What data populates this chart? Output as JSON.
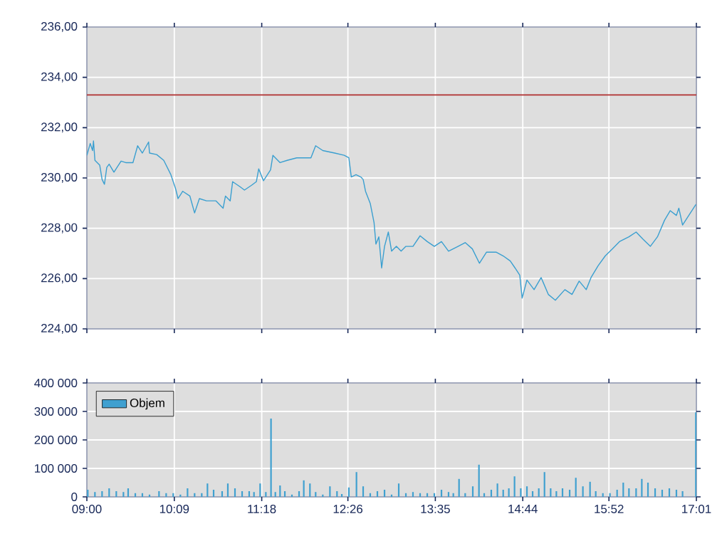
{
  "chart_data": [
    {
      "type": "line",
      "color": "#3a9fd0",
      "x": [
        9.0,
        9.044,
        9.075,
        9.087,
        9.106,
        9.169,
        9.2,
        9.231,
        9.262,
        9.293,
        9.356,
        9.45,
        9.512,
        9.606,
        9.668,
        9.73,
        9.812,
        9.824,
        9.918,
        10.011,
        10.105,
        10.168,
        10.199,
        10.261,
        10.355,
        10.417,
        10.48,
        10.573,
        10.698,
        10.792,
        10.823,
        10.885,
        10.917,
        11.01,
        11.073,
        11.166,
        11.229,
        11.26,
        11.323,
        11.416,
        11.447,
        11.541,
        11.635,
        11.76,
        11.947,
        12.009,
        12.103,
        12.259,
        12.384,
        12.446,
        12.478,
        12.54,
        12.602,
        12.634,
        12.665,
        12.727,
        12.777,
        12.802,
        12.84,
        12.877,
        12.915,
        12.965,
        13.008,
        13.071,
        13.133,
        13.196,
        13.289,
        13.383,
        13.477,
        13.57,
        13.664,
        13.757,
        13.882,
        13.976,
        14.07,
        14.163,
        14.257,
        14.382,
        14.476,
        14.569,
        14.632,
        14.694,
        14.725,
        14.788,
        14.882,
        14.975,
        15.069,
        15.162,
        15.287,
        15.381,
        15.475,
        15.568,
        15.631,
        15.724,
        15.818,
        15.911,
        16.005,
        16.13,
        16.224,
        16.317,
        16.411,
        16.505,
        16.598,
        16.673,
        16.754,
        16.786,
        16.835,
        17.011
      ],
      "values": [
        230.9,
        231.37,
        231.09,
        231.47,
        230.7,
        230.51,
        229.94,
        229.75,
        230.42,
        230.55,
        230.23,
        230.67,
        230.61,
        230.61,
        231.28,
        230.99,
        231.43,
        230.99,
        230.93,
        230.7,
        230.13,
        229.56,
        229.18,
        229.47,
        229.28,
        228.61,
        229.18,
        229.09,
        229.09,
        228.8,
        229.28,
        229.09,
        229.85,
        229.66,
        229.52,
        229.71,
        229.85,
        230.36,
        229.89,
        230.32,
        230.9,
        230.61,
        230.7,
        230.8,
        230.8,
        231.28,
        231.09,
        230.99,
        230.9,
        230.8,
        230.04,
        230.13,
        230.04,
        229.94,
        229.47,
        228.99,
        228.23,
        227.37,
        227.66,
        226.42,
        227.28,
        227.85,
        227.09,
        227.28,
        227.09,
        227.28,
        227.28,
        227.7,
        227.47,
        227.28,
        227.47,
        227.09,
        227.28,
        227.43,
        227.18,
        226.61,
        227.05,
        227.05,
        226.9,
        226.7,
        226.42,
        226.13,
        225.22,
        225.94,
        225.56,
        226.04,
        225.37,
        225.14,
        225.56,
        225.37,
        225.9,
        225.56,
        226.04,
        226.51,
        226.9,
        227.18,
        227.47,
        227.66,
        227.85,
        227.56,
        227.28,
        227.66,
        228.32,
        228.7,
        228.51,
        228.8,
        228.13,
        228.95
      ],
      "xlim": [
        9,
        17.0167
      ],
      "xticks": [
        {
          "value": 9,
          "label": null
        },
        {
          "value": 10.15,
          "label": null
        },
        {
          "value": 11.3,
          "label": null
        },
        {
          "value": 12.4333,
          "label": null
        },
        {
          "value": 13.5833,
          "label": null
        },
        {
          "value": 14.7333,
          "label": null
        },
        {
          "value": 15.8667,
          "label": null
        },
        {
          "value": 17.0167,
          "label": null
        }
      ],
      "ylim": [
        224,
        236
      ],
      "yticks": [
        {
          "value": 224,
          "label": "224,00"
        },
        {
          "value": 226,
          "label": "226,00"
        },
        {
          "value": 228,
          "label": "228,00"
        },
        {
          "value": 230,
          "label": "230,00"
        },
        {
          "value": 232,
          "label": "232,00"
        },
        {
          "value": 234,
          "label": "234,00"
        },
        {
          "value": 236,
          "label": "236,00"
        }
      ],
      "ref_lines": [
        {
          "axis": "y",
          "value": 233.3,
          "color": "#b03030"
        }
      ],
      "grid": true,
      "tick_labels": "y"
    },
    {
      "type": "bar",
      "legend": "top left",
      "grid": true,
      "series": [
        {
          "name": "Objem",
          "color": "#3fa0d0",
          "x": [
            9.012,
            9.106,
            9.2,
            9.293,
            9.387,
            9.481,
            9.543,
            9.637,
            9.73,
            9.824,
            9.949,
            10.043,
            10.136,
            10.23,
            10.324,
            10.417,
            10.511,
            10.586,
            10.667,
            10.779,
            10.854,
            10.948,
            11.042,
            11.135,
            11.198,
            11.279,
            11.354,
            11.422,
            11.479,
            11.541,
            11.604,
            11.697,
            11.791,
            11.853,
            11.934,
            12.009,
            12.103,
            12.197,
            12.29,
            12.353,
            12.446,
            12.546,
            12.634,
            12.727,
            12.821,
            12.915,
            13.008,
            13.102,
            13.196,
            13.289,
            13.383,
            13.477,
            13.57,
            13.664,
            13.757,
            13.82,
            13.895,
            13.976,
            14.076,
            14.157,
            14.226,
            14.319,
            14.4,
            14.476,
            14.55,
            14.625,
            14.707,
            14.788,
            14.863,
            14.944,
            15.019,
            15.1,
            15.175,
            15.256,
            15.35,
            15.431,
            15.524,
            15.618,
            15.693,
            15.787,
            15.88,
            15.974,
            16.055,
            16.13,
            16.224,
            16.299,
            16.38,
            16.474,
            16.567,
            16.661,
            16.754,
            16.835,
            17.01
          ],
          "values": [
            25000,
            17000,
            20000,
            30000,
            20000,
            17000,
            30000,
            13000,
            13000,
            8000,
            20000,
            13000,
            13000,
            8000,
            30000,
            13000,
            13000,
            47000,
            25000,
            20000,
            47000,
            30000,
            20000,
            20000,
            17000,
            47000,
            17000,
            275000,
            17000,
            40000,
            20000,
            8000,
            20000,
            58000,
            47000,
            17000,
            8000,
            37000,
            20000,
            10000,
            33000,
            87000,
            37000,
            13000,
            20000,
            25000,
            8000,
            47000,
            13000,
            17000,
            13000,
            13000,
            13000,
            25000,
            17000,
            13000,
            63000,
            13000,
            37000,
            113000,
            13000,
            25000,
            47000,
            25000,
            30000,
            72000,
            30000,
            37000,
            20000,
            30000,
            87000,
            30000,
            20000,
            30000,
            25000,
            67000,
            37000,
            53000,
            20000,
            13000,
            13000,
            25000,
            50000,
            30000,
            30000,
            63000,
            50000,
            30000,
            25000,
            30000,
            25000,
            20000,
            297000
          ]
        }
      ],
      "xlim": [
        9,
        17.0167
      ],
      "xticks": [
        {
          "value": 9,
          "label": "09:00"
        },
        {
          "value": 10.15,
          "label": "10:09"
        },
        {
          "value": 11.3,
          "label": "11:18"
        },
        {
          "value": 12.4333,
          "label": "12:26"
        },
        {
          "value": 13.5833,
          "label": "13:35"
        },
        {
          "value": 14.7333,
          "label": "14:44"
        },
        {
          "value": 15.8667,
          "label": "15:52"
        },
        {
          "value": 17.0167,
          "label": "17:01"
        }
      ],
      "ylim": [
        0,
        400000
      ],
      "yticks": [
        0,
        {
          "value": 100000,
          "label": "100 000"
        },
        {
          "value": 200000,
          "label": "200 000"
        },
        {
          "value": 300000,
          "label": "300 000"
        },
        {
          "value": 400000,
          "label": "400 000"
        }
      ]
    }
  ]
}
